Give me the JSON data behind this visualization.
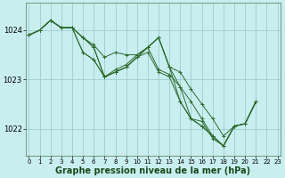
{
  "background_color": "#c8eef0",
  "plot_bg_color": "#c8eef0",
  "grid_color": "#a0cccc",
  "line_color": "#2d6a2d",
  "marker_color": "#2d6a2d",
  "xlabel": "Graphe pression niveau de la mer (hPa)",
  "xlabel_fontsize": 7.0,
  "ytick_labels": [
    "1022",
    "1023",
    "1024"
  ],
  "yticks": [
    1022,
    1023,
    1024
  ],
  "xticks": [
    0,
    1,
    2,
    3,
    4,
    5,
    6,
    7,
    8,
    9,
    10,
    11,
    12,
    13,
    14,
    15,
    16,
    17,
    18,
    19,
    20,
    21,
    22,
    23
  ],
  "xlim": [
    -0.3,
    23.3
  ],
  "ylim": [
    1021.45,
    1024.55
  ],
  "series": [
    [
      [
        0,
        1023.9
      ],
      [
        1,
        1024.0
      ],
      [
        2,
        1024.2
      ],
      [
        3,
        1024.05
      ],
      [
        4,
        1024.05
      ],
      [
        5,
        1023.85
      ],
      [
        6,
        1023.7
      ],
      [
        7,
        1023.45
      ],
      [
        8,
        1023.55
      ],
      [
        9,
        1023.5
      ],
      [
        10,
        1023.5
      ],
      [
        11,
        1023.65
      ],
      [
        12,
        1023.85
      ],
      [
        13,
        1023.25
      ],
      [
        14,
        1023.15
      ],
      [
        15,
        1022.8
      ],
      [
        16,
        1022.5
      ],
      [
        17,
        1022.2
      ],
      [
        18,
        1021.85
      ],
      [
        19,
        1022.05
      ],
      [
        20,
        1022.1
      ],
      [
        21,
        1022.55
      ]
    ],
    [
      [
        0,
        1023.9
      ],
      [
        1,
        1024.0
      ],
      [
        2,
        1024.2
      ],
      [
        3,
        1024.05
      ],
      [
        4,
        1024.05
      ],
      [
        5,
        1023.85
      ],
      [
        6,
        1023.65
      ],
      [
        7,
        1023.05
      ],
      [
        8,
        1023.2
      ],
      [
        9,
        1023.3
      ],
      [
        10,
        1023.5
      ],
      [
        11,
        1023.65
      ],
      [
        12,
        1023.2
      ],
      [
        13,
        1023.1
      ],
      [
        14,
        1022.85
      ],
      [
        15,
        1022.2
      ],
      [
        16,
        1022.15
      ],
      [
        17,
        1021.8
      ],
      [
        18,
        1021.65
      ],
      [
        19,
        1022.05
      ],
      [
        20,
        1022.1
      ],
      [
        21,
        1022.55
      ]
    ],
    [
      [
        0,
        1023.9
      ],
      [
        1,
        1024.0
      ],
      [
        2,
        1024.2
      ],
      [
        3,
        1024.05
      ],
      [
        4,
        1024.05
      ],
      [
        5,
        1023.85
      ],
      [
        6,
        1023.65
      ],
      [
        7,
        1023.05
      ],
      [
        8,
        1023.15
      ],
      [
        9,
        1023.25
      ],
      [
        10,
        1023.45
      ],
      [
        11,
        1023.55
      ],
      [
        12,
        1023.15
      ],
      [
        13,
        1023.05
      ],
      [
        14,
        1022.55
      ],
      [
        15,
        1022.2
      ],
      [
        16,
        1022.05
      ],
      [
        17,
        1021.85
      ],
      [
        18,
        1021.65
      ],
      [
        19,
        1022.05
      ],
      [
        20,
        1022.1
      ],
      [
        21,
        1022.55
      ]
    ],
    [
      [
        0,
        1023.9
      ],
      [
        1,
        1024.0
      ],
      [
        2,
        1024.2
      ],
      [
        3,
        1024.05
      ],
      [
        4,
        1024.05
      ],
      [
        5,
        1023.55
      ],
      [
        6,
        1023.4
      ],
      [
        7,
        1023.05
      ],
      [
        8,
        1023.15
      ],
      [
        9,
        1023.25
      ],
      [
        10,
        1023.45
      ],
      [
        11,
        1023.65
      ],
      [
        12,
        1023.85
      ],
      [
        13,
        1023.25
      ],
      [
        14,
        1022.55
      ],
      [
        15,
        1022.2
      ],
      [
        16,
        1022.05
      ],
      [
        17,
        1021.85
      ],
      [
        18,
        1021.65
      ],
      [
        19,
        1022.05
      ],
      [
        20,
        1022.1
      ],
      [
        21,
        1022.55
      ]
    ],
    [
      [
        0,
        1023.9
      ],
      [
        1,
        1024.0
      ],
      [
        2,
        1024.2
      ],
      [
        3,
        1024.05
      ],
      [
        4,
        1024.05
      ],
      [
        5,
        1023.55
      ],
      [
        6,
        1023.4
      ],
      [
        7,
        1023.05
      ],
      [
        8,
        1023.15
      ],
      [
        9,
        1023.25
      ],
      [
        10,
        1023.45
      ],
      [
        11,
        1023.65
      ],
      [
        12,
        1023.85
      ],
      [
        13,
        1023.25
      ],
      [
        14,
        1022.85
      ],
      [
        15,
        1022.55
      ],
      [
        16,
        1022.2
      ],
      [
        17,
        1021.85
      ],
      [
        18,
        1021.65
      ],
      [
        19,
        1022.05
      ],
      [
        20,
        1022.1
      ],
      [
        21,
        1022.55
      ]
    ]
  ]
}
